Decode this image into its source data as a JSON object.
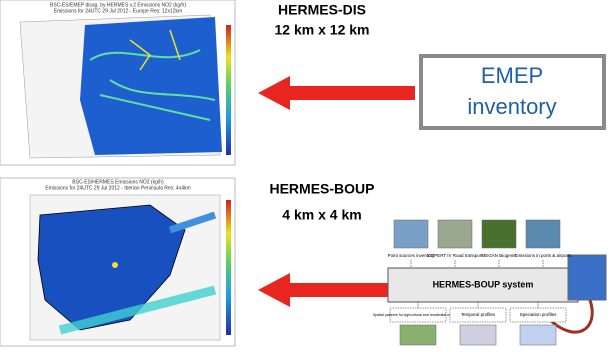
{
  "maps": [
    {
      "title": "BSC-ES/EMEP disag. by HERMES v.2 Emissions NO2 (kg/h)",
      "subtitle": "Emissions for 24UTC 29 Jul 2012 - Europe Res: 12x12km"
    },
    {
      "title": "BSC-ES/HERMES Emissions NO2 (kg/h)",
      "subtitle": "Emissions for 24UTC 29 Jul 2012 - Iberian Peninsula Res: 4x4km"
    }
  ],
  "labels": {
    "dis_name": "HERMES-DIS",
    "dis_res": "12 km x 12 km",
    "boup_name": "HERMES-BOUP",
    "boup_res": "4 km x 4 km"
  },
  "emep": {
    "line1": "EMEP",
    "line2": "inventory"
  },
  "system": {
    "title": "HERMES-BOUP system",
    "inputs": [
      "Point sources inventory",
      "COPERT IV Road transport",
      "MEGAN Biogenic",
      "Emissions in ports & airports"
    ],
    "outputs": [
      "Spatial patterns for Agricultural and residential emissions",
      "Temporal profiles",
      "Speciation profiles"
    ]
  }
}
